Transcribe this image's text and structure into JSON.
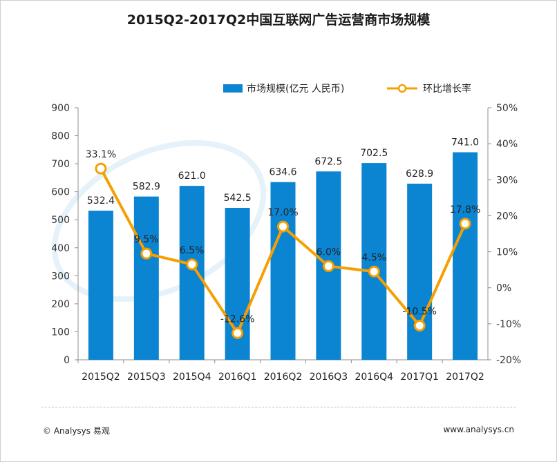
{
  "chart_data": {
    "type": "bar+line",
    "title": "2015Q2-2017Q2中国互联网广告运营商市场规模",
    "categories": [
      "2015Q2",
      "2015Q3",
      "2015Q4",
      "2016Q1",
      "2016Q2",
      "2016Q3",
      "2016Q4",
      "2017Q1",
      "2017Q2"
    ],
    "series": [
      {
        "name": "市场规模(亿元 人民币)",
        "type": "bar",
        "axis": "left",
        "color": "#0b84d2",
        "values": [
          532.4,
          582.9,
          621.0,
          542.5,
          634.6,
          672.5,
          702.5,
          628.9,
          741.0
        ],
        "labels": [
          "532.4",
          "582.9",
          "621.0",
          "542.5",
          "634.6",
          "672.5",
          "702.5",
          "628.9",
          "741.0"
        ]
      },
      {
        "name": "环比增长率",
        "type": "line",
        "axis": "right",
        "color": "#f5a000",
        "values": [
          33.1,
          9.5,
          6.5,
          -12.6,
          17.0,
          6.0,
          4.5,
          -10.5,
          17.8
        ],
        "labels": [
          "33.1%",
          "9.5%",
          "6.5%",
          "-12.6%",
          "17.0%",
          "6.0%",
          "4.5%",
          "-10.5%",
          "17.8%"
        ]
      }
    ],
    "y_left": {
      "min": 0,
      "max": 900,
      "step": 100,
      "ticks": [
        "0",
        "100",
        "200",
        "300",
        "400",
        "500",
        "600",
        "700",
        "800",
        "900"
      ]
    },
    "y_right": {
      "min": -20,
      "max": 50,
      "step": 10,
      "ticks": [
        "-20%",
        "-10%",
        "0%",
        "10%",
        "20%",
        "30%",
        "40%",
        "50%"
      ]
    },
    "legend_position": "top-right",
    "grid": false
  },
  "footer": {
    "left": "© Analysys 易观",
    "right": "www.analysys.cn"
  }
}
